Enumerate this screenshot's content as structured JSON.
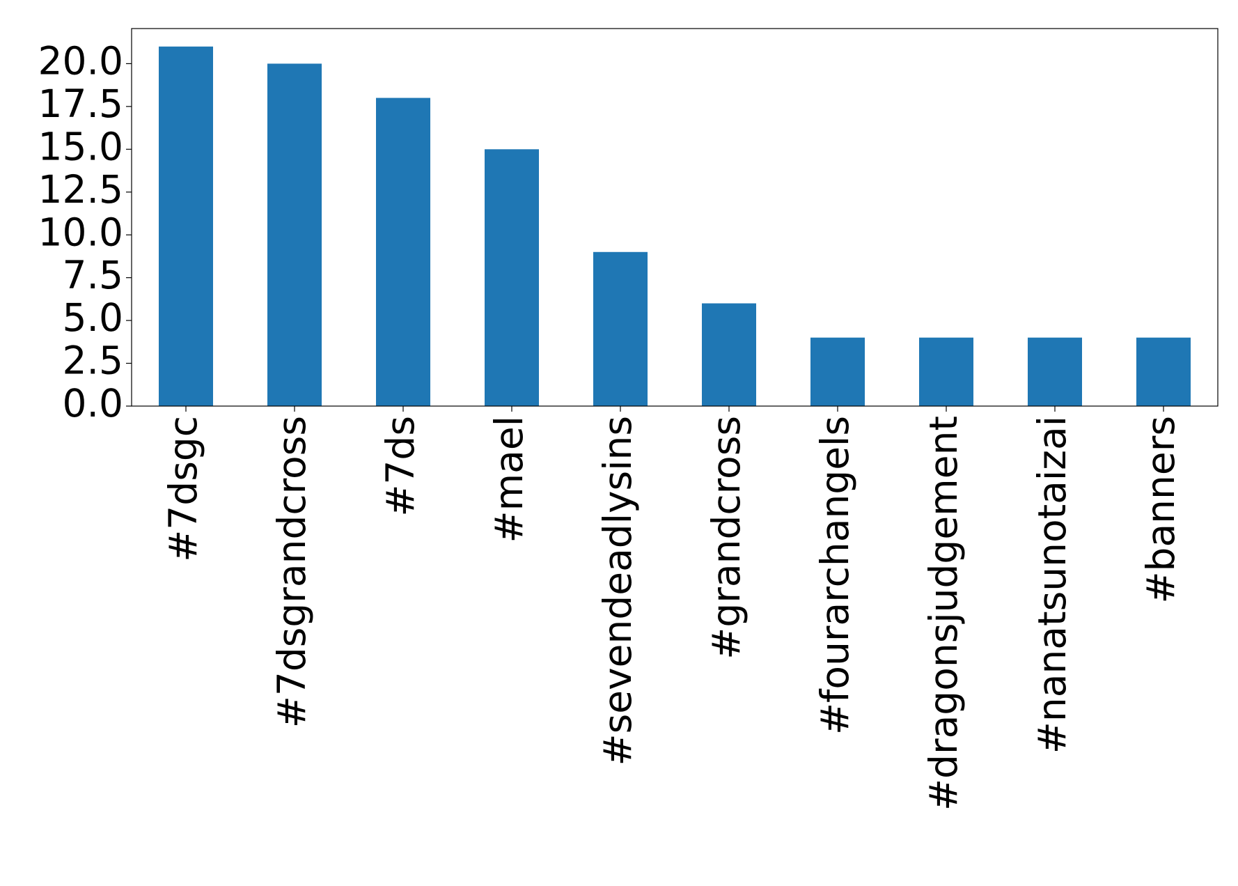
{
  "chart_data": {
    "type": "bar",
    "categories": [
      "#7dsgc",
      "#7dsgrandcross",
      "#7ds",
      "#mael",
      "#sevendeadlysins",
      "#grandcross",
      "#fourarchangels",
      "#dragonsjudgement",
      "#nanatsunotaizai",
      "#banners"
    ],
    "values": [
      21,
      20,
      18,
      15,
      9,
      6,
      4,
      4,
      4,
      4
    ],
    "color": "#1f77b4",
    "ylim": [
      0,
      22.05
    ],
    "yticks": [
      {
        "value": 0,
        "label": "0.0"
      },
      2.5,
      {
        "value": 5,
        "label": "5.0"
      },
      7.5,
      {
        "value": 10,
        "label": "10.0"
      },
      12.5,
      {
        "value": 15,
        "label": "15.0"
      },
      17.5,
      {
        "value": 20,
        "label": "20.0"
      }
    ],
    "grid": false
  }
}
